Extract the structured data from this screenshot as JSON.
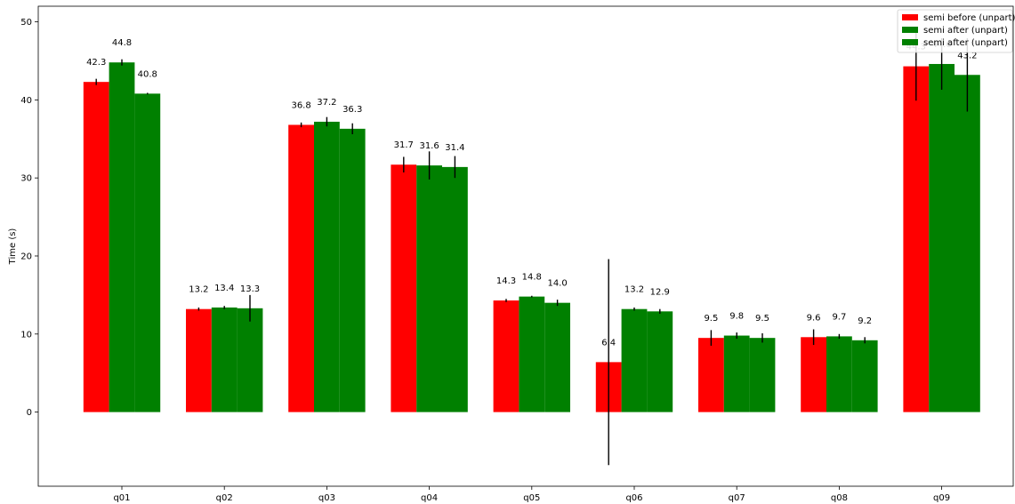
{
  "chart_data": {
    "type": "bar",
    "title": "",
    "xlabel": "",
    "ylabel": "Time (s)",
    "ylim": [
      -9.5,
      52
    ],
    "yticks": [
      0,
      10,
      20,
      30,
      40,
      50
    ],
    "grid": false,
    "legend_position": "top-right",
    "categories": [
      "q01",
      "q02",
      "q03",
      "q04",
      "q05",
      "q06",
      "q07",
      "q08",
      "q09"
    ],
    "series": [
      {
        "name": "semi before (unpart)",
        "color": "#ff0000",
        "values": [
          42.3,
          13.2,
          36.8,
          31.7,
          14.3,
          6.4,
          9.5,
          9.6,
          44.3
        ],
        "errors": [
          0.4,
          0.2,
          0.3,
          1.0,
          0.2,
          13.2,
          1.0,
          1.0,
          4.4
        ],
        "labels": [
          "42.3",
          "13.2",
          "36.8",
          "31.7",
          "14.3",
          "6.4",
          "9.5",
          "9.6",
          "44.3"
        ]
      },
      {
        "name": "semi after (unpart)",
        "color": "#008000",
        "values": [
          44.8,
          13.4,
          37.2,
          31.6,
          14.8,
          13.2,
          9.8,
          9.7,
          44.6
        ],
        "errors": [
          0.4,
          0.2,
          0.6,
          1.8,
          0.1,
          0.2,
          0.4,
          0.3,
          3.3
        ],
        "labels": [
          "44.8",
          "13.4",
          "37.2",
          "31.6",
          "14.8",
          "13.2",
          "9.8",
          "9.7",
          "44.6"
        ]
      },
      {
        "name": "semi after (unpart)",
        "color": "#008000",
        "values": [
          40.8,
          13.3,
          36.3,
          31.4,
          14.0,
          12.9,
          9.5,
          9.2,
          43.2
        ],
        "errors": [
          0.1,
          1.7,
          0.7,
          1.4,
          0.4,
          0.3,
          0.6,
          0.4,
          4.7
        ],
        "labels": [
          "40.8",
          "13.3",
          "36.3",
          "31.4",
          "14.0",
          "12.9",
          "9.5",
          "9.2",
          "43.2"
        ]
      }
    ]
  }
}
